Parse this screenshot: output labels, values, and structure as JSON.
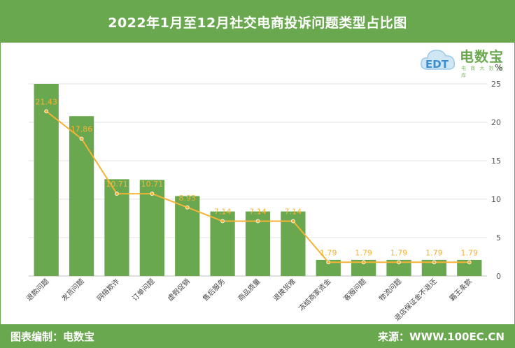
{
  "header": {
    "title": "2022年1月至12月社交电商投诉问题类型占比图"
  },
  "footer": {
    "left": "图表编制：电数宝",
    "right": "来源：WWW.100EC.CN"
  },
  "logo": {
    "text": "电数宝",
    "sub": "电 商 大 数 据 库",
    "mark": "EDT"
  },
  "chart_data": {
    "type": "bar",
    "unit_label": "%",
    "categories": [
      "退款问题",
      "发货问题",
      "网络欺诈",
      "订单问题",
      "虚假促销",
      "售后服务",
      "商品质量",
      "退换货难",
      "冻结商家资金",
      "客服问题",
      "物流问题",
      "退店保证金不退还",
      "霸王条款"
    ],
    "values": [
      25,
      20.8,
      12.6,
      12.5,
      10.4,
      8.4,
      8.4,
      8.4,
      2.1,
      2.1,
      2.1,
      2.1,
      2.1
    ],
    "line_values": [
      21.43,
      17.86,
      10.71,
      10.71,
      8.93,
      7.14,
      7.14,
      7.14,
      1.79,
      1.79,
      1.79,
      1.79,
      1.79
    ],
    "line_labels": [
      "21.43",
      "17.86",
      "10.71",
      "10.71",
      "8.93",
      "7.14",
      "7.14",
      "7.14",
      "1.79",
      "1.79",
      "1.79",
      "1.79",
      "1.79"
    ],
    "ylim": [
      0,
      25
    ],
    "yticks": [
      0,
      5,
      10,
      15,
      20,
      25
    ],
    "bar_color": "#6aa84f",
    "line_color": "#f5b335",
    "grid": true
  }
}
